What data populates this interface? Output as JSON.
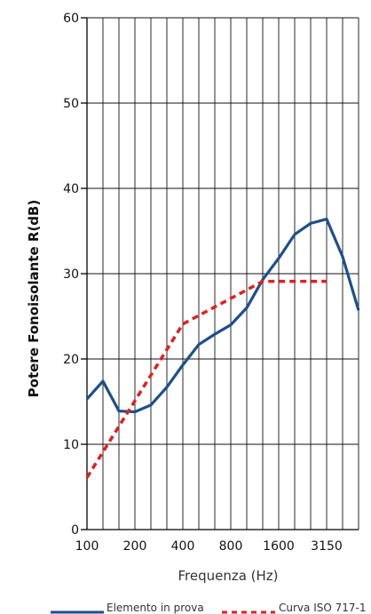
{
  "chart_data": {
    "type": "line",
    "xlabel": "Frequenza (Hz)",
    "ylabel": "Potere Fonoisolante R(dB)",
    "ylim": [
      0,
      60
    ],
    "yticks": [
      0,
      10,
      20,
      30,
      40,
      50,
      60
    ],
    "x_tick_labels": [
      "100",
      "200",
      "400",
      "800",
      "1600",
      "3150"
    ],
    "grid": true,
    "legend_position": "bottom-right",
    "x": [
      "100",
      "125",
      "160",
      "200",
      "250",
      "315",
      "400",
      "500",
      "630",
      "800",
      "1000",
      "1250",
      "1600",
      "2000",
      "2500",
      "3150",
      "4000",
      "5000"
    ],
    "series": [
      {
        "name": "Elemento in prova",
        "color": "#1e4f8c",
        "style": "solid",
        "values": [
          15.3,
          17.4,
          13.9,
          13.8,
          14.6,
          16.7,
          19.3,
          21.7,
          22.9,
          24.0,
          26.0,
          29.3,
          31.8,
          34.6,
          35.9,
          36.4,
          32.0,
          25.7
        ]
      },
      {
        "name": "Curva ISO 717-1",
        "color": "#e02020",
        "style": "dashed",
        "values": [
          6.1,
          9.1,
          12.1,
          15.1,
          18.1,
          21.1,
          24.1,
          25.1,
          26.1,
          27.1,
          28.1,
          29.1,
          29.1,
          29.1,
          29.1,
          29.1,
          null,
          null
        ]
      }
    ]
  }
}
